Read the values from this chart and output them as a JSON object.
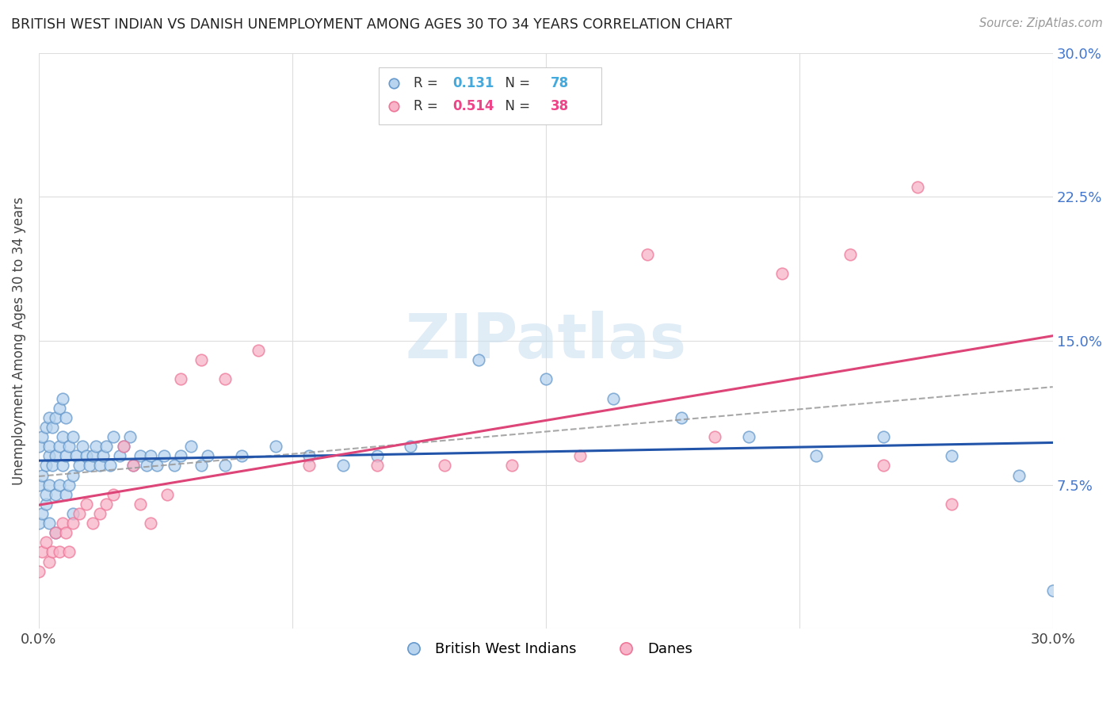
{
  "title": "BRITISH WEST INDIAN VS DANISH UNEMPLOYMENT AMONG AGES 30 TO 34 YEARS CORRELATION CHART",
  "source": "Source: ZipAtlas.com",
  "ylabel": "Unemployment Among Ages 30 to 34 years",
  "xlim": [
    0.0,
    0.3
  ],
  "ylim": [
    0.0,
    0.3
  ],
  "xtick_positions": [
    0.0,
    0.075,
    0.15,
    0.225,
    0.3
  ],
  "xtick_labels": [
    "0.0%",
    "",
    "",
    "",
    "30.0%"
  ],
  "ytick_positions": [
    0.0,
    0.075,
    0.15,
    0.225,
    0.3
  ],
  "ytick_labels_right": [
    "",
    "7.5%",
    "15.0%",
    "22.5%",
    "30.0%"
  ],
  "bwi_R": 0.131,
  "bwi_N": 78,
  "danes_R": 0.514,
  "danes_N": 38,
  "bwi_face_color": "#b8d4ee",
  "bwi_edge_color": "#6699cc",
  "danes_face_color": "#f8b4c8",
  "danes_edge_color": "#ee7799",
  "bwi_line_color": "#2255aa",
  "danes_line_color": "#dd4477",
  "dashed_line_color": "#999999",
  "right_axis_color": "#4477cc",
  "legend_r_bwi_color": "#44aadd",
  "legend_n_bwi_color": "#44aadd",
  "legend_r_danes_color": "#ee4488",
  "legend_n_danes_color": "#ee4488",
  "watermark_color": "#cce0f0",
  "background_color": "#ffffff",
  "grid_color": "#dddddd",
  "bwi_x": [
    0.0,
    0.0,
    0.0,
    0.001,
    0.001,
    0.001,
    0.002,
    0.002,
    0.002,
    0.002,
    0.003,
    0.003,
    0.003,
    0.003,
    0.003,
    0.004,
    0.004,
    0.005,
    0.005,
    0.005,
    0.005,
    0.006,
    0.006,
    0.006,
    0.007,
    0.007,
    0.007,
    0.008,
    0.008,
    0.008,
    0.009,
    0.009,
    0.01,
    0.01,
    0.01,
    0.011,
    0.012,
    0.013,
    0.014,
    0.015,
    0.016,
    0.017,
    0.018,
    0.019,
    0.02,
    0.021,
    0.022,
    0.024,
    0.025,
    0.027,
    0.028,
    0.03,
    0.032,
    0.033,
    0.035,
    0.037,
    0.04,
    0.042,
    0.045,
    0.048,
    0.05,
    0.055,
    0.06,
    0.07,
    0.08,
    0.09,
    0.1,
    0.11,
    0.13,
    0.15,
    0.17,
    0.19,
    0.21,
    0.23,
    0.25,
    0.27,
    0.29,
    0.3
  ],
  "bwi_y": [
    0.055,
    0.075,
    0.095,
    0.06,
    0.08,
    0.1,
    0.065,
    0.085,
    0.105,
    0.07,
    0.09,
    0.11,
    0.075,
    0.095,
    0.055,
    0.085,
    0.105,
    0.09,
    0.11,
    0.07,
    0.05,
    0.095,
    0.115,
    0.075,
    0.1,
    0.12,
    0.085,
    0.09,
    0.11,
    0.07,
    0.095,
    0.075,
    0.1,
    0.08,
    0.06,
    0.09,
    0.085,
    0.095,
    0.09,
    0.085,
    0.09,
    0.095,
    0.085,
    0.09,
    0.095,
    0.085,
    0.1,
    0.09,
    0.095,
    0.1,
    0.085,
    0.09,
    0.085,
    0.09,
    0.085,
    0.09,
    0.085,
    0.09,
    0.095,
    0.085,
    0.09,
    0.085,
    0.09,
    0.095,
    0.09,
    0.085,
    0.09,
    0.095,
    0.14,
    0.13,
    0.12,
    0.11,
    0.1,
    0.09,
    0.1,
    0.09,
    0.08,
    0.02
  ],
  "danes_x": [
    0.0,
    0.001,
    0.002,
    0.003,
    0.004,
    0.005,
    0.006,
    0.007,
    0.008,
    0.009,
    0.01,
    0.012,
    0.014,
    0.016,
    0.018,
    0.02,
    0.022,
    0.025,
    0.028,
    0.03,
    0.033,
    0.038,
    0.042,
    0.048,
    0.055,
    0.065,
    0.08,
    0.1,
    0.12,
    0.14,
    0.16,
    0.18,
    0.2,
    0.22,
    0.24,
    0.25,
    0.26,
    0.27
  ],
  "danes_y": [
    0.03,
    0.04,
    0.045,
    0.035,
    0.04,
    0.05,
    0.04,
    0.055,
    0.05,
    0.04,
    0.055,
    0.06,
    0.065,
    0.055,
    0.06,
    0.065,
    0.07,
    0.095,
    0.085,
    0.065,
    0.055,
    0.07,
    0.13,
    0.14,
    0.13,
    0.145,
    0.085,
    0.085,
    0.085,
    0.085,
    0.09,
    0.195,
    0.1,
    0.185,
    0.195,
    0.085,
    0.23,
    0.065
  ]
}
